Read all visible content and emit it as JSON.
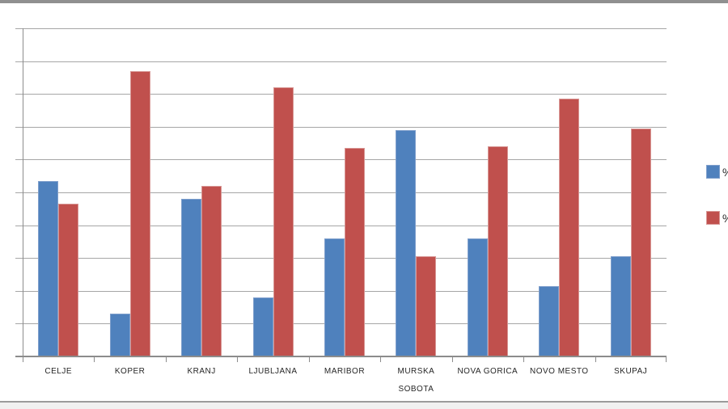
{
  "window": {
    "top_border_color": "#909090",
    "bottom_border_color": "#9b9b9b",
    "bottom_strip_color": "#f0f0f0"
  },
  "chart_data": {
    "type": "bar",
    "categories": [
      "CELJE",
      "KOPER",
      "KRANJ",
      "LJUBLJANA",
      "MARIBOR",
      "MURSKA SOBOTA",
      "NOVA GORICA",
      "NOVO MESTO",
      "SKUPAJ"
    ],
    "series": [
      {
        "name": "%",
        "color": "#4f81bd",
        "border_color": "#7f9fcc",
        "values": [
          53.5,
          13,
          48,
          18,
          36,
          69,
          36,
          21.5,
          30.5
        ]
      },
      {
        "name": "%",
        "color": "#c0504d",
        "border_color": "#d89795",
        "values": [
          46.5,
          87,
          52,
          82,
          63.5,
          30.5,
          64,
          78.5,
          69.5
        ]
      }
    ],
    "xlabel": "",
    "ylabel": "",
    "ylim": [
      0,
      100
    ],
    "gridline_step": 10,
    "grid": true,
    "y_tick_labels_visible": false,
    "legend_position": "right",
    "legend": [
      {
        "label": "%",
        "color": "#4f81bd",
        "border_color": "#7f9fcc"
      },
      {
        "label": "%",
        "color": "#c0504d",
        "border_color": "#d89795"
      }
    ],
    "gridline_color": "#a6a6a6",
    "axis_color": "#8c8c8c",
    "label_color": "#262626"
  }
}
